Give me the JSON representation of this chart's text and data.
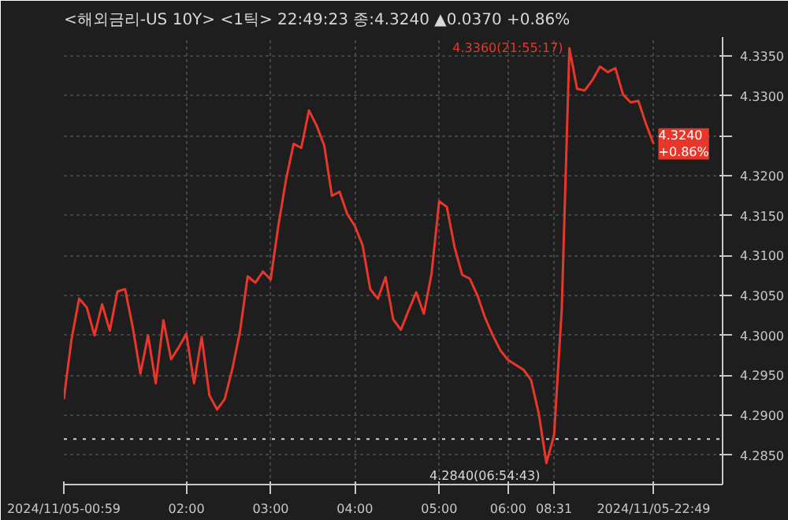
{
  "chart_data": {
    "type": "line",
    "title": "<해외금리-US 10Y> <1틱> 22:49:23 종:4.3240 ▲0.0370 +0.86%",
    "categories": [
      "2024/11/05-00:59",
      null,
      null,
      null,
      null,
      null,
      null,
      null,
      null,
      null,
      null,
      null,
      null,
      null,
      null,
      null,
      "02:00",
      null,
      null,
      null,
      null,
      null,
      null,
      null,
      null,
      null,
      null,
      "03:00",
      null,
      null,
      null,
      null,
      null,
      null,
      null,
      null,
      null,
      null,
      "04:00",
      null,
      null,
      null,
      null,
      null,
      null,
      null,
      null,
      null,
      null,
      "05:00",
      null,
      null,
      null,
      null,
      null,
      null,
      null,
      null,
      "06:00",
      null,
      null,
      null,
      null,
      null,
      "08:31",
      null,
      null,
      null,
      null,
      null,
      null,
      null,
      null,
      null,
      null,
      null,
      null,
      "2024/11/05-22:49"
    ],
    "series": [
      {
        "color": "#e8372a",
        "values": [
          4.292,
          4.2995,
          4.3046,
          4.3035,
          4.3,
          4.3039,
          4.3006,
          4.3055,
          4.3058,
          4.301,
          4.2952,
          4.3,
          4.294,
          4.3019,
          4.297,
          4.2985,
          4.3002,
          4.294,
          4.2998,
          4.2925,
          4.2907,
          4.292,
          4.2958,
          4.3005,
          4.3074,
          4.3066,
          4.308,
          4.307,
          4.3137,
          4.3195,
          4.324,
          4.3235,
          4.3282,
          4.3263,
          4.3238,
          4.3175,
          4.318,
          4.3152,
          4.3137,
          4.3113,
          4.3058,
          4.3046,
          4.3073,
          4.302,
          4.3007,
          4.3031,
          4.3054,
          4.3027,
          4.3077,
          4.3168,
          4.3161,
          4.3111,
          4.3076,
          4.3071,
          4.305,
          4.3022,
          4.3,
          4.2981,
          4.2969,
          4.2963,
          4.2957,
          4.2944,
          4.2902,
          4.284,
          4.2875,
          4.3032,
          4.336,
          4.3309,
          4.3307,
          4.332,
          4.3337,
          4.333,
          4.3335,
          4.3302,
          4.3292,
          4.3294,
          4.3265,
          4.324
        ]
      }
    ],
    "ylim": [
      4.2813,
      4.3374
    ],
    "yticks": [
      {
        "value": 4.335,
        "label": "4.3350"
      },
      {
        "value": 4.33,
        "label": "4.3300"
      },
      {
        "value": 4.325,
        "label": null
      },
      {
        "value": 4.32,
        "label": "4.3200"
      },
      {
        "value": 4.315,
        "label": "4.3150"
      },
      {
        "value": 4.31,
        "label": "4.3100"
      },
      {
        "value": 4.305,
        "label": "4.3050"
      },
      {
        "value": 4.3,
        "label": "4.3000"
      },
      {
        "value": 4.295,
        "label": "4.2950"
      },
      {
        "value": 4.29,
        "label": "4.2900"
      },
      {
        "value": 4.285,
        "label": "4.2850"
      }
    ],
    "ref_lines": [
      {
        "axis": "y",
        "value": 4.287,
        "color": "#d0d0d0",
        "line_style": "dotted"
      }
    ],
    "annotations": [
      "4.3360(21:55:17)",
      "4.2840(06:54:43)",
      "4.3240\n+0.86%"
    ],
    "grid": true,
    "marker": "none",
    "line_style": "solid"
  }
}
